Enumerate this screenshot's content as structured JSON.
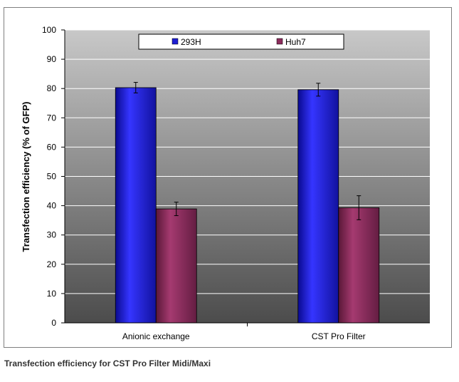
{
  "chart_data": {
    "type": "bar",
    "categories": [
      "Anionic exchange",
      "CST Pro Filter"
    ],
    "series": [
      {
        "name": "293H",
        "values": [
          80.3,
          79.6
        ],
        "errors": [
          1.8,
          2.2
        ]
      },
      {
        "name": "Huh7",
        "values": [
          38.9,
          39.3
        ],
        "errors": [
          2.3,
          4.1
        ]
      }
    ],
    "ylabel": "Transfection efficiency (% of GFP)",
    "xlabel": "",
    "ylim": [
      0,
      100
    ],
    "yticks": [
      0,
      10,
      20,
      30,
      40,
      50,
      60,
      70,
      80,
      90,
      100
    ],
    "grid": true,
    "legend_position": "top-right",
    "colors": {
      "293H": "#1e1ed2",
      "Huh7": "#8c2c5c",
      "plot_top": "#c8c8c8",
      "plot_bottom": "#4c4c4c"
    }
  },
  "caption": "Transfection efficiency for CST Pro Filter Midi/Maxi"
}
